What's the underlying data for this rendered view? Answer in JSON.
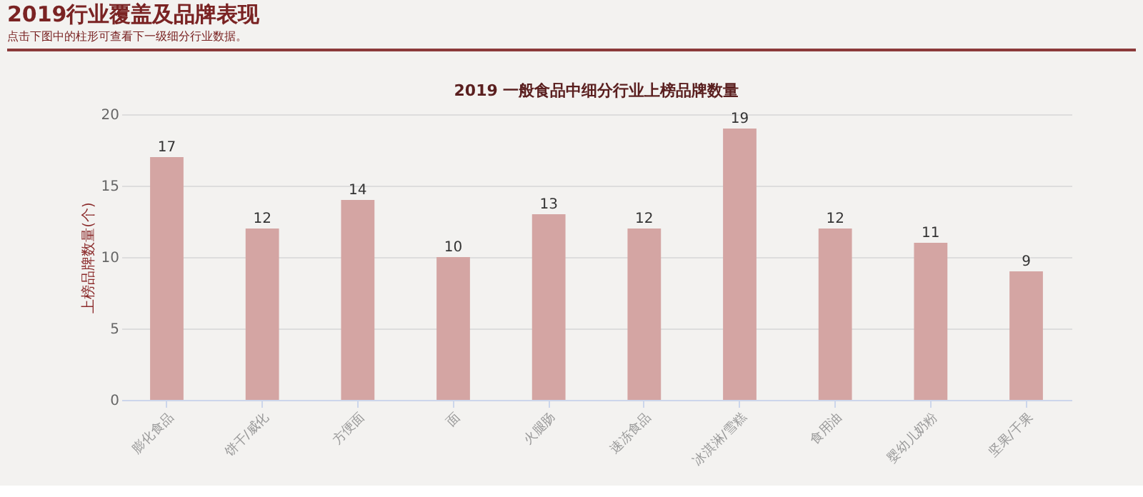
{
  "chart_data": {
    "type": "bar",
    "title": "2019 一般食品中细分行业上榜品牌数量",
    "annotations": [
      "2019行业覆盖及品牌表现",
      "点击下图中的柱形可查看下一级细分行业数据。"
    ],
    "ylabel": "上榜品牌数量(个)",
    "categories": [
      "膨化食品",
      "饼干/威化",
      "方便面",
      "面",
      "火腿肠",
      "速冻食品",
      "冰淇淋/雪糕",
      "食用油",
      "婴幼儿奶粉",
      "坚果/干果"
    ],
    "values": [
      17,
      12,
      14,
      10,
      13,
      12,
      19,
      12,
      11,
      9
    ],
    "color": "#d4a5a3",
    "ylim": [
      0,
      20
    ],
    "yticks": [
      0,
      5,
      10,
      15,
      20
    ],
    "grid": "y",
    "data_labels": true
  }
}
